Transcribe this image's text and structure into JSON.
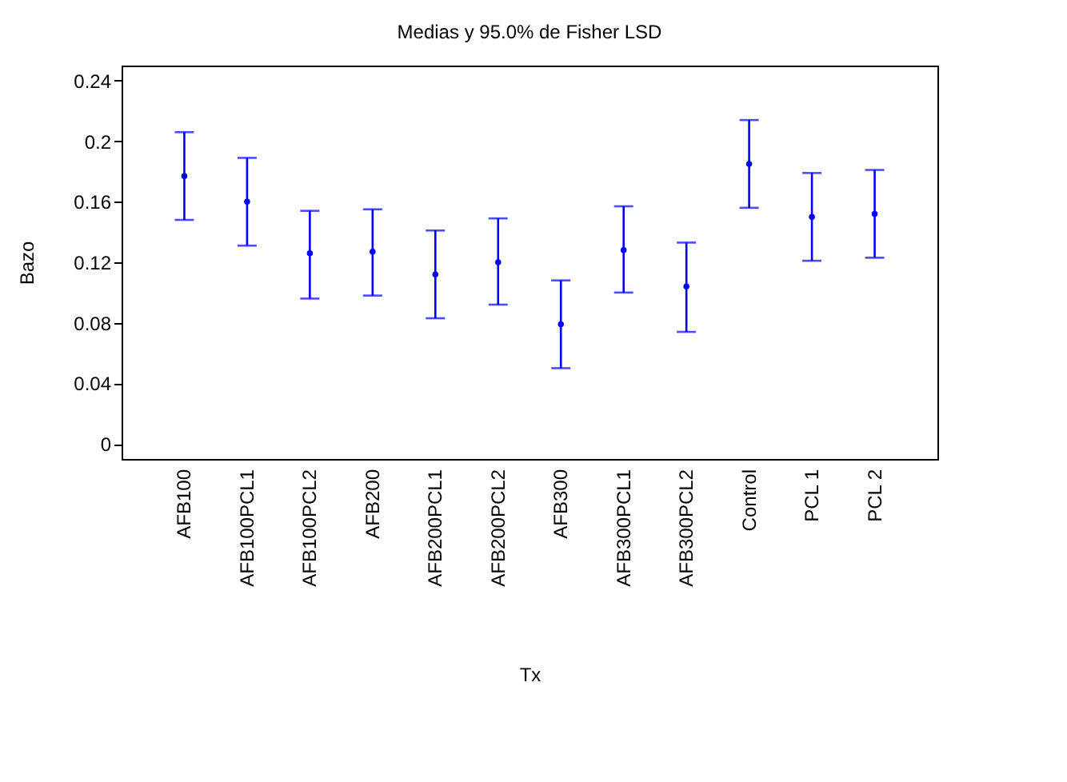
{
  "chart_data": {
    "type": "scatter",
    "title": "Medias y 95.0% de Fisher LSD",
    "xlabel": "Tx",
    "ylabel": "Bazo",
    "categories": [
      "AFB100",
      "AFB100PCL1",
      "AFB100PCL2",
      "AFB200",
      "AFB200PCL1",
      "AFB200PCL2",
      "AFB300",
      "AFB300PCL1",
      "AFB300PCL2",
      "Control",
      "PCL 1",
      "PCL 2"
    ],
    "series": [
      {
        "color": "#0000ff",
        "values": [
          0.177,
          0.16,
          0.126,
          0.127,
          0.112,
          0.12,
          0.079,
          0.128,
          0.104,
          0.185,
          0.15,
          0.152
        ],
        "errors": [
          [
            0.148,
            0.206
          ],
          [
            0.131,
            0.189
          ],
          [
            0.096,
            0.154
          ],
          [
            0.098,
            0.155
          ],
          [
            0.083,
            0.141
          ],
          [
            0.092,
            0.149
          ],
          [
            0.05,
            0.108
          ],
          [
            0.1,
            0.157
          ],
          [
            0.074,
            0.133
          ],
          [
            0.156,
            0.214
          ],
          [
            0.121,
            0.179
          ],
          [
            0.123,
            0.181
          ]
        ]
      }
    ],
    "ylim": [
      -0.01,
      0.25
    ],
    "yticks": [
      0,
      0.04,
      0.08,
      0.12,
      0.16,
      0.2,
      0.24
    ],
    "grid": false,
    "marker": "circle"
  }
}
